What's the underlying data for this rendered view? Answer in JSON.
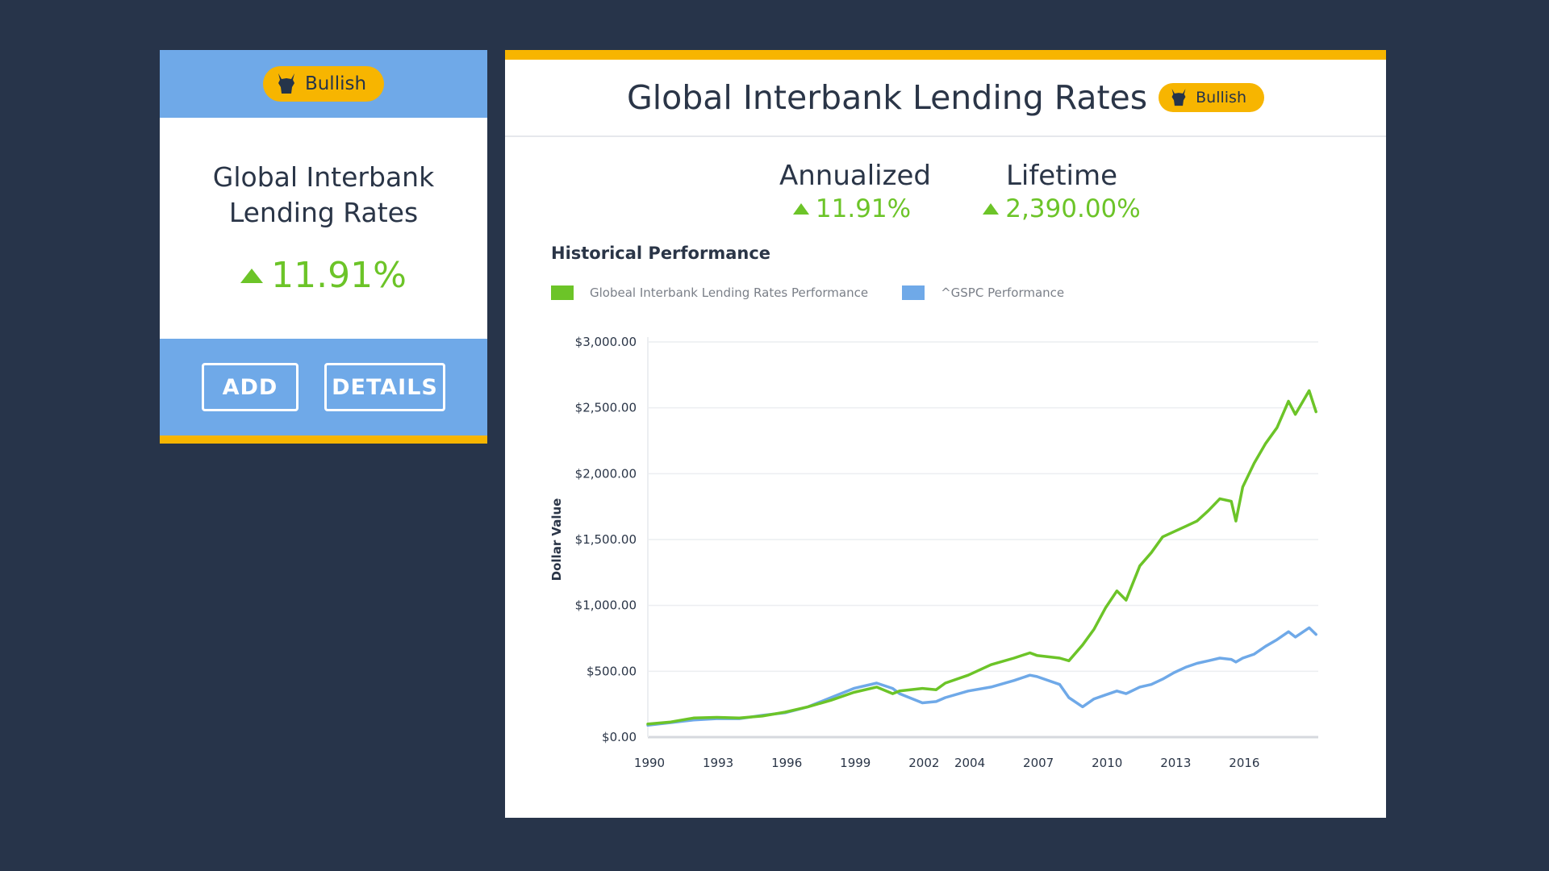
{
  "colors": {
    "background": "#27344a",
    "card_blue": "#6fa9e8",
    "accent_yellow": "#f7b500",
    "positive_green": "#6cc428",
    "series_blue": "#6fa9e8"
  },
  "card": {
    "badge_icon": "bull-icon",
    "badge_label": "Bullish",
    "title_line1": "Global Interbank",
    "title_line2": "Lending Rates",
    "change_icon": "up-triangle-icon",
    "change_value": "11.91%",
    "buttons": {
      "add_label": "ADD",
      "details_label": "DETAILS"
    }
  },
  "panel": {
    "title": "Global Interbank Lending Rates",
    "badge_label": "Bullish",
    "stats": [
      {
        "label": "Annualized",
        "value": "11.91%"
      },
      {
        "label": "Lifetime",
        "value": "2,390.00%"
      }
    ],
    "section_title": "Historical Performance"
  },
  "chart_data": {
    "type": "line",
    "ylabel": "Dollar Value",
    "ylim": [
      0,
      3000
    ],
    "xlim": [
      1990,
      2019.3
    ],
    "y_ticks": [
      {
        "value": 0,
        "label": "$0.00"
      },
      {
        "value": 500,
        "label": "$500.00"
      },
      {
        "value": 1000,
        "label": "$1,000.00"
      },
      {
        "value": 1500,
        "label": "$1,500.00"
      },
      {
        "value": 2000,
        "label": "$2,000.00"
      },
      {
        "value": 2500,
        "label": "$2,500.00"
      },
      {
        "value": 3000,
        "label": "$3,000.00"
      }
    ],
    "x_ticks": [
      "1990",
      "1993",
      "1996",
      "1999",
      "2002",
      "2004",
      "2007",
      "2010",
      "2013",
      "2016"
    ],
    "legend_position": "top-left",
    "grid": true,
    "series": [
      {
        "name": "Globeal Interbank Lending Rates Performance",
        "color": "#6cc428",
        "points": [
          [
            1990.0,
            100
          ],
          [
            1991.0,
            115
          ],
          [
            1992.0,
            145
          ],
          [
            1993.0,
            150
          ],
          [
            1994.0,
            145
          ],
          [
            1995.0,
            160
          ],
          [
            1996.0,
            190
          ],
          [
            1997.0,
            230
          ],
          [
            1998.0,
            280
          ],
          [
            1999.0,
            340
          ],
          [
            2000.0,
            380
          ],
          [
            2000.7,
            330
          ],
          [
            2001.0,
            350
          ],
          [
            2002.0,
            370
          ],
          [
            2002.6,
            360
          ],
          [
            2003.0,
            410
          ],
          [
            2004.0,
            470
          ],
          [
            2005.0,
            550
          ],
          [
            2006.0,
            600
          ],
          [
            2006.7,
            640
          ],
          [
            2007.0,
            620
          ],
          [
            2008.0,
            600
          ],
          [
            2008.4,
            580
          ],
          [
            2009.0,
            700
          ],
          [
            2009.5,
            820
          ],
          [
            2010.0,
            980
          ],
          [
            2010.5,
            1110
          ],
          [
            2010.9,
            1040
          ],
          [
            2011.5,
            1300
          ],
          [
            2012.0,
            1400
          ],
          [
            2012.5,
            1520
          ],
          [
            2013.0,
            1560
          ],
          [
            2013.5,
            1600
          ],
          [
            2014.0,
            1640
          ],
          [
            2014.5,
            1720
          ],
          [
            2015.0,
            1810
          ],
          [
            2015.5,
            1790
          ],
          [
            2015.7,
            1640
          ],
          [
            2016.0,
            1900
          ],
          [
            2016.5,
            2080
          ],
          [
            2017.0,
            2230
          ],
          [
            2017.5,
            2350
          ],
          [
            2018.0,
            2550
          ],
          [
            2018.3,
            2450
          ],
          [
            2018.9,
            2630
          ],
          [
            2019.2,
            2470
          ]
        ]
      },
      {
        "name": "^GSPC Performance",
        "color": "#6fa9e8",
        "points": [
          [
            1990.0,
            90
          ],
          [
            1991.0,
            110
          ],
          [
            1992.0,
            130
          ],
          [
            1993.0,
            140
          ],
          [
            1994.0,
            140
          ],
          [
            1995.0,
            165
          ],
          [
            1996.0,
            185
          ],
          [
            1997.0,
            230
          ],
          [
            1998.0,
            300
          ],
          [
            1999.0,
            370
          ],
          [
            2000.0,
            410
          ],
          [
            2000.7,
            370
          ],
          [
            2001.0,
            330
          ],
          [
            2002.0,
            260
          ],
          [
            2002.6,
            270
          ],
          [
            2003.0,
            300
          ],
          [
            2004.0,
            350
          ],
          [
            2005.0,
            380
          ],
          [
            2006.0,
            430
          ],
          [
            2006.7,
            470
          ],
          [
            2007.0,
            460
          ],
          [
            2008.0,
            400
          ],
          [
            2008.4,
            300
          ],
          [
            2009.0,
            230
          ],
          [
            2009.5,
            290
          ],
          [
            2010.0,
            320
          ],
          [
            2010.5,
            350
          ],
          [
            2010.9,
            330
          ],
          [
            2011.5,
            380
          ],
          [
            2012.0,
            400
          ],
          [
            2012.5,
            440
          ],
          [
            2013.0,
            490
          ],
          [
            2013.5,
            530
          ],
          [
            2014.0,
            560
          ],
          [
            2014.5,
            580
          ],
          [
            2015.0,
            600
          ],
          [
            2015.5,
            590
          ],
          [
            2015.7,
            570
          ],
          [
            2016.0,
            600
          ],
          [
            2016.5,
            630
          ],
          [
            2017.0,
            690
          ],
          [
            2017.5,
            740
          ],
          [
            2018.0,
            800
          ],
          [
            2018.3,
            760
          ],
          [
            2018.9,
            830
          ],
          [
            2019.2,
            780
          ]
        ]
      }
    ]
  }
}
